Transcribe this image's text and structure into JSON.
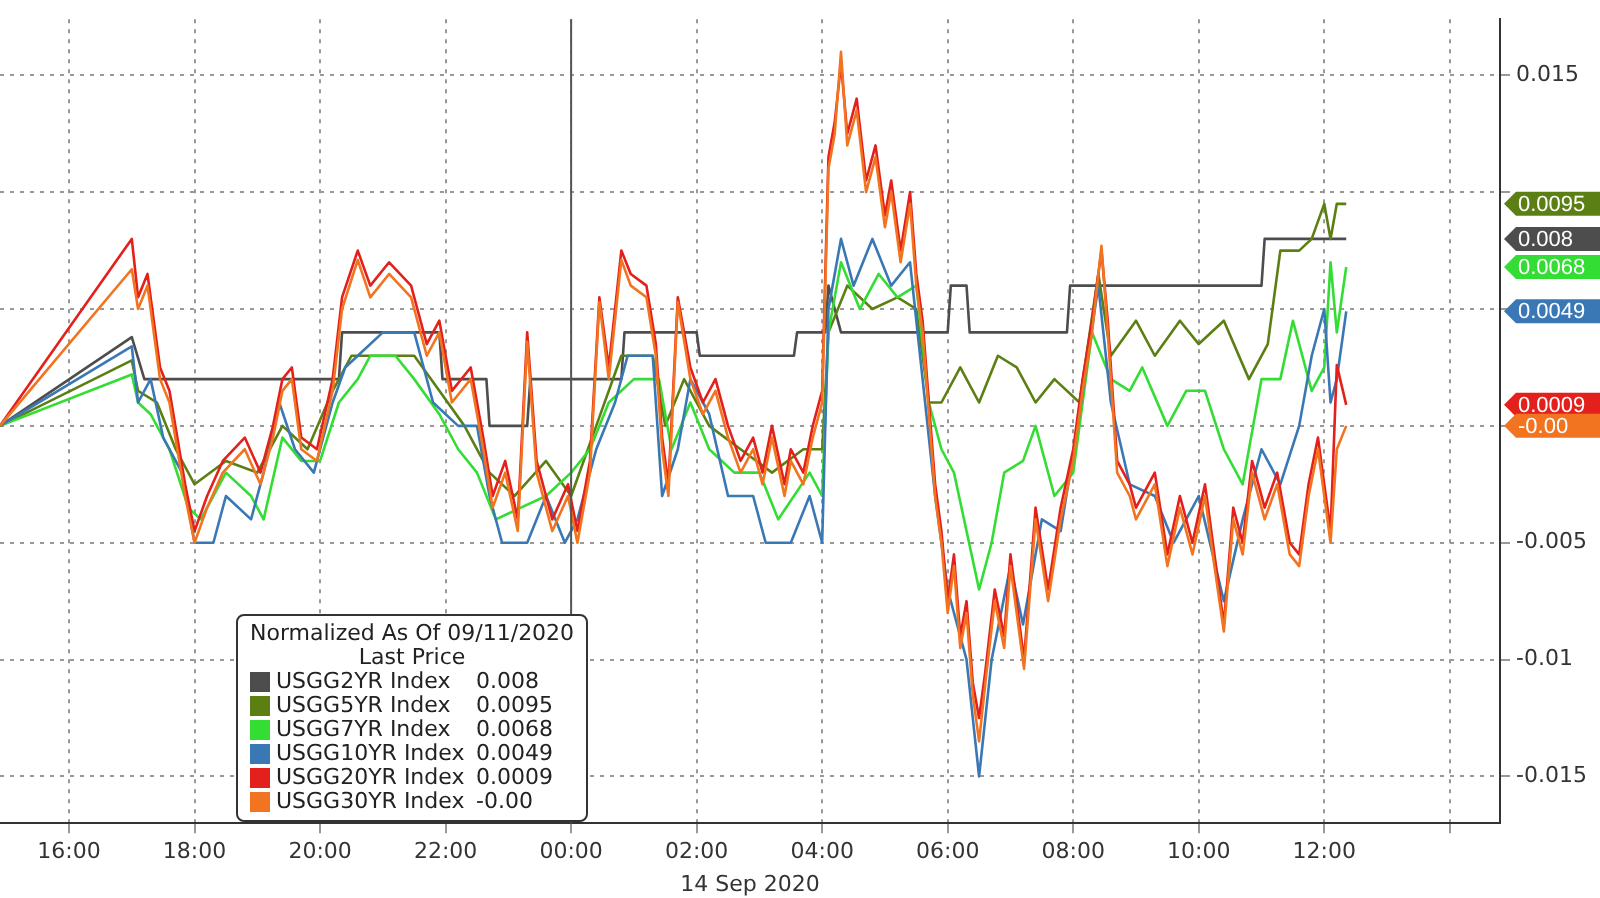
{
  "chart_data": {
    "type": "line",
    "xlabel": "14 Sep 2020",
    "legend_title": "Normalized As Of 09/11/2020",
    "legend": "bottom left",
    "grid": true,
    "marker": "none",
    "line_style": "solid",
    "xlim": [
      "2020-09-13T14:54",
      "2020-09-14T14:48"
    ],
    "xticks": [
      {
        "value": "2020-09-13T16:00",
        "label": "16:00"
      },
      {
        "value": "2020-09-13T18:00",
        "label": "18:00"
      },
      {
        "value": "2020-09-13T20:00",
        "label": "20:00"
      },
      {
        "value": "2020-09-13T22:00",
        "label": "22:00"
      },
      {
        "value": "2020-09-14T00:00",
        "label": "00:00"
      },
      {
        "value": "2020-09-14T02:00",
        "label": "02:00"
      },
      {
        "value": "2020-09-14T04:00",
        "label": "04:00"
      },
      {
        "value": "2020-09-14T06:00",
        "label": "06:00"
      },
      {
        "value": "2020-09-14T08:00",
        "label": "08:00"
      },
      {
        "value": "2020-09-14T10:00",
        "label": "10:00"
      },
      {
        "value": "2020-09-14T12:00",
        "label": "12:00"
      },
      {
        "value": "2020-09-14T14:00",
        "label": null
      }
    ],
    "ylim": [
      -0.017,
      0.0174
    ],
    "yticks": [
      0.015,
      {
        "value": 0.01,
        "label": null
      },
      {
        "value": 0.005,
        "label": null
      },
      {
        "value": 0,
        "label": null
      },
      -0.005,
      -0.01,
      -0.015
    ],
    "ref_lines": [
      {
        "axis": "x",
        "value": "2020-09-14T00:00",
        "color": "#555555"
      }
    ],
    "x": [
      "2020-09-13T14:54",
      "2020-09-13T17:00",
      "2020-09-13T17:06",
      "2020-09-13T17:15",
      "2020-09-13T17:27",
      "2020-09-13T17:36",
      "2020-09-13T17:51",
      "2020-09-13T18:00",
      "2020-09-13T18:12",
      "2020-09-13T18:27",
      "2020-09-13T18:48",
      "2020-09-13T19:03",
      "2020-09-13T19:15",
      "2020-09-13T19:24",
      "2020-09-13T19:33",
      "2020-09-13T19:42",
      "2020-09-13T19:57",
      "2020-09-13T20:12",
      "2020-09-13T20:21",
      "2020-09-13T20:36",
      "2020-09-13T20:48",
      "2020-09-13T21:06",
      "2020-09-13T21:27",
      "2020-09-13T21:42",
      "2020-09-13T21:54",
      "2020-09-13T22:06",
      "2020-09-13T22:24",
      "2020-09-13T22:36",
      "2020-09-13T22:45",
      "2020-09-13T22:57",
      "2020-09-13T23:09",
      "2020-09-13T23:18",
      "2020-09-13T23:27",
      "2020-09-13T23:42",
      "2020-09-13T23:57",
      "2020-09-14T00:06",
      "2020-09-14T00:18",
      "2020-09-14T00:27",
      "2020-09-14T00:36",
      "2020-09-14T00:48",
      "2020-09-14T00:57",
      "2020-09-14T01:12",
      "2020-09-14T01:21",
      "2020-09-14T01:27",
      "2020-09-14T01:33",
      "2020-09-14T01:42",
      "2020-09-14T01:54",
      "2020-09-14T02:06",
      "2020-09-14T02:18",
      "2020-09-14T02:30",
      "2020-09-14T02:42",
      "2020-09-14T02:54",
      "2020-09-14T03:03",
      "2020-09-14T03:12",
      "2020-09-14T03:24",
      "2020-09-14T03:30",
      "2020-09-14T03:42",
      "2020-09-14T03:51",
      "2020-09-14T04:00",
      "2020-09-14T04:06",
      "2020-09-14T04:12",
      "2020-09-14T04:18",
      "2020-09-14T04:24",
      "2020-09-14T04:33",
      "2020-09-14T04:42",
      "2020-09-14T04:51",
      "2020-09-14T05:00",
      "2020-09-14T05:06",
      "2020-09-14T05:15",
      "2020-09-14T05:24",
      "2020-09-14T05:30",
      "2020-09-14T05:36",
      "2020-09-14T05:42",
      "2020-09-14T05:48",
      "2020-09-14T05:54",
      "2020-09-14T06:00",
      "2020-09-14T06:06",
      "2020-09-14T06:12",
      "2020-09-14T06:18",
      "2020-09-14T06:24",
      "2020-09-14T06:30",
      "2020-09-14T06:36",
      "2020-09-14T06:45",
      "2020-09-14T06:54",
      "2020-09-14T07:00",
      "2020-09-14T07:13",
      "2020-09-14T07:24",
      "2020-09-14T07:36",
      "2020-09-14T07:48",
      "2020-09-14T08:00",
      "2020-09-14T08:09",
      "2020-09-14T08:18",
      "2020-09-14T08:27",
      "2020-09-14T08:33",
      "2020-09-14T08:42",
      "2020-09-14T08:54",
      "2020-09-14T09:00",
      "2020-09-14T09:18",
      "2020-09-14T09:30",
      "2020-09-14T09:42",
      "2020-09-14T09:54",
      "2020-09-14T10:06",
      "2020-09-14T10:15",
      "2020-09-14T10:24",
      "2020-09-14T10:33",
      "2020-09-14T10:42",
      "2020-09-14T10:51",
      "2020-09-14T11:03",
      "2020-09-14T11:15",
      "2020-09-14T11:27",
      "2020-09-14T11:36",
      "2020-09-14T11:45",
      "2020-09-14T11:54",
      "2020-09-14T12:00",
      "2020-09-14T12:06",
      "2020-09-14T12:12",
      "2020-09-14T12:21"
    ],
    "series": [
      {
        "name": "USGG2YR Index",
        "color": "#4d4d4d",
        "x": [
          "2020-09-13T14:54",
          "2020-09-13T17:00",
          "2020-09-13T17:12",
          "2020-09-13T20:18",
          "2020-09-13T20:21",
          "2020-09-13T21:54",
          "2020-09-13T21:57",
          "2020-09-13T22:39",
          "2020-09-13T22:42",
          "2020-09-13T23:18",
          "2020-09-13T23:21",
          "2020-09-14T00:48",
          "2020-09-14T00:51",
          "2020-09-14T02:00",
          "2020-09-14T02:03",
          "2020-09-14T03:33",
          "2020-09-14T03:36",
          "2020-09-14T04:03",
          "2020-09-14T04:06",
          "2020-09-14T04:18",
          "2020-09-14T06:00",
          "2020-09-14T06:03",
          "2020-09-14T06:18",
          "2020-09-14T06:21",
          "2020-09-14T07:54",
          "2020-09-14T07:57",
          "2020-09-14T11:00",
          "2020-09-14T11:03",
          "2020-09-14T12:21"
        ],
        "values": [
          0,
          0.0038,
          0.002,
          0.002,
          0.004,
          0.004,
          0.002,
          0.002,
          0,
          0,
          0.002,
          0.002,
          0.004,
          0.004,
          0.003,
          0.003,
          0.004,
          0.004,
          0.006,
          0.004,
          0.004,
          0.006,
          0.006,
          0.004,
          0.004,
          0.006,
          0.006,
          0.008,
          0.008
        ]
      },
      {
        "name": "USGG5YR Index",
        "color": "#5b7f12",
        "x": [
          "2020-09-13T14:54",
          "2020-09-13T17:00",
          "2020-09-13T17:06",
          "2020-09-13T17:24",
          "2020-09-13T17:42",
          "2020-09-13T18:00",
          "2020-09-13T18:30",
          "2020-09-13T19:00",
          "2020-09-13T19:24",
          "2020-09-13T19:48",
          "2020-09-13T20:12",
          "2020-09-13T20:30",
          "2020-09-13T21:00",
          "2020-09-13T21:30",
          "2020-09-13T21:54",
          "2020-09-13T22:18",
          "2020-09-13T22:42",
          "2020-09-13T23:06",
          "2020-09-13T23:36",
          "2020-09-14T00:00",
          "2020-09-14T00:24",
          "2020-09-14T00:48",
          "2020-09-14T01:18",
          "2020-09-14T01:30",
          "2020-09-14T01:48",
          "2020-09-14T02:12",
          "2020-09-14T02:42",
          "2020-09-14T03:12",
          "2020-09-14T03:42",
          "2020-09-14T04:00",
          "2020-09-14T04:06",
          "2020-09-14T04:24",
          "2020-09-14T04:48",
          "2020-09-14T05:12",
          "2020-09-14T05:30",
          "2020-09-14T05:42",
          "2020-09-14T05:54",
          "2020-09-14T06:12",
          "2020-09-14T06:30",
          "2020-09-14T06:48",
          "2020-09-14T07:06",
          "2020-09-14T07:24",
          "2020-09-14T07:42",
          "2020-09-14T08:06",
          "2020-09-14T08:24",
          "2020-09-14T08:36",
          "2020-09-14T09:00",
          "2020-09-14T09:18",
          "2020-09-14T09:42",
          "2020-09-14T10:00",
          "2020-09-14T10:24",
          "2020-09-14T10:48",
          "2020-09-14T11:06",
          "2020-09-14T11:18",
          "2020-09-14T11:36",
          "2020-09-14T11:48",
          "2020-09-14T12:00",
          "2020-09-14T12:06",
          "2020-09-14T12:12",
          "2020-09-14T12:21"
        ],
        "values": [
          0,
          0.0028,
          0.0015,
          0.001,
          -0.001,
          -0.0025,
          -0.0015,
          -0.002,
          0,
          -0.001,
          0.0015,
          0.003,
          0.003,
          0.003,
          0.0015,
          0,
          -0.002,
          -0.003,
          -0.0015,
          -0.003,
          0,
          0.003,
          0.003,
          0,
          0.002,
          0,
          -0.001,
          -0.002,
          -0.001,
          -0.001,
          0.004,
          0.006,
          0.005,
          0.0055,
          0.005,
          0.001,
          0.001,
          0.0025,
          0.001,
          0.003,
          0.0025,
          0.001,
          0.002,
          0.001,
          0.0065,
          0.003,
          0.0045,
          0.003,
          0.0045,
          0.0035,
          0.0045,
          0.002,
          0.0035,
          0.0075,
          0.0075,
          0.008,
          0.0095,
          0.008,
          0.0095,
          0.0095
        ]
      },
      {
        "name": "USGG7YR Index",
        "color": "#33dd33",
        "x": [
          "2020-09-13T14:54",
          "2020-09-13T17:00",
          "2020-09-13T17:06",
          "2020-09-13T17:18",
          "2020-09-13T17:36",
          "2020-09-13T17:54",
          "2020-09-13T18:06",
          "2020-09-13T18:30",
          "2020-09-13T18:54",
          "2020-09-13T19:06",
          "2020-09-13T19:24",
          "2020-09-13T19:42",
          "2020-09-13T20:00",
          "2020-09-13T20:18",
          "2020-09-13T20:36",
          "2020-09-13T20:48",
          "2020-09-13T21:12",
          "2020-09-13T21:30",
          "2020-09-13T21:54",
          "2020-09-13T22:12",
          "2020-09-13T22:30",
          "2020-09-13T22:48",
          "2020-09-13T23:12",
          "2020-09-13T23:36",
          "2020-09-14T00:00",
          "2020-09-14T00:18",
          "2020-09-14T00:36",
          "2020-09-14T01:00",
          "2020-09-14T01:24",
          "2020-09-14T01:36",
          "2020-09-14T01:54",
          "2020-09-14T02:12",
          "2020-09-14T02:36",
          "2020-09-14T03:00",
          "2020-09-14T03:18",
          "2020-09-14T03:48",
          "2020-09-14T04:00",
          "2020-09-14T04:06",
          "2020-09-14T04:18",
          "2020-09-14T04:36",
          "2020-09-14T04:54",
          "2020-09-14T05:12",
          "2020-09-14T05:30",
          "2020-09-14T05:42",
          "2020-09-14T05:54",
          "2020-09-14T06:06",
          "2020-09-14T06:18",
          "2020-09-14T06:30",
          "2020-09-14T06:42",
          "2020-09-14T06:54",
          "2020-09-14T07:12",
          "2020-09-14T07:24",
          "2020-09-14T07:42",
          "2020-09-14T08:00",
          "2020-09-14T08:18",
          "2020-09-14T08:36",
          "2020-09-14T08:54",
          "2020-09-14T09:06",
          "2020-09-14T09:30",
          "2020-09-14T09:48",
          "2020-09-14T10:06",
          "2020-09-14T10:24",
          "2020-09-14T10:42",
          "2020-09-14T11:00",
          "2020-09-14T11:18",
          "2020-09-14T11:30",
          "2020-09-14T11:48",
          "2020-09-14T12:00",
          "2020-09-14T12:06",
          "2020-09-14T12:12",
          "2020-09-14T12:21"
        ],
        "values": [
          0,
          0.0022,
          0.001,
          0.0005,
          -0.001,
          -0.0035,
          -0.004,
          -0.002,
          -0.003,
          -0.004,
          -0.0005,
          -0.0015,
          -0.0015,
          0.001,
          0.002,
          0.003,
          0.003,
          0.002,
          0.0005,
          -0.001,
          -0.002,
          -0.004,
          -0.0035,
          -0.003,
          -0.002,
          -0.001,
          0.001,
          0.002,
          0.002,
          -0.001,
          0.001,
          -0.001,
          -0.002,
          -0.002,
          -0.004,
          -0.002,
          -0.003,
          0.004,
          0.007,
          0.005,
          0.0065,
          0.0055,
          0.006,
          0.001,
          -0.001,
          -0.002,
          -0.0045,
          -0.007,
          -0.005,
          -0.002,
          -0.0015,
          0,
          -0.003,
          -0.002,
          0.004,
          0.002,
          0.0015,
          0.0025,
          0,
          0.0015,
          0.0015,
          -0.001,
          -0.0025,
          0.002,
          0.002,
          0.0045,
          0.0015,
          0.0025,
          0.007,
          0.004,
          0.0068
        ]
      },
      {
        "name": "USGG10YR Index",
        "color": "#3a78b5",
        "x": [
          "2020-09-13T14:54",
          "2020-09-13T17:00",
          "2020-09-13T17:06",
          "2020-09-13T17:18",
          "2020-09-13T17:30",
          "2020-09-13T17:48",
          "2020-09-13T18:00",
          "2020-09-13T18:18",
          "2020-09-13T18:30",
          "2020-09-13T18:54",
          "2020-09-13T19:06",
          "2020-09-13T19:21",
          "2020-09-13T19:36",
          "2020-09-13T19:54",
          "2020-09-13T20:12",
          "2020-09-13T20:24",
          "2020-09-13T20:36",
          "2020-09-13T21:00",
          "2020-09-13T21:30",
          "2020-09-13T21:48",
          "2020-09-13T22:12",
          "2020-09-13T22:30",
          "2020-09-13T22:42",
          "2020-09-13T22:54",
          "2020-09-13T23:18",
          "2020-09-13T23:36",
          "2020-09-13T23:54",
          "2020-09-14T00:06",
          "2020-09-14T00:24",
          "2020-09-14T00:42",
          "2020-09-14T00:54",
          "2020-09-14T01:18",
          "2020-09-14T01:27",
          "2020-09-14T01:42",
          "2020-09-14T01:54",
          "2020-09-14T02:12",
          "2020-09-14T02:30",
          "2020-09-14T02:54",
          "2020-09-14T03:06",
          "2020-09-14T03:30",
          "2020-09-14T03:48",
          "2020-09-14T04:00",
          "2020-09-14T04:06",
          "2020-09-14T04:18",
          "2020-09-14T04:30",
          "2020-09-14T04:48",
          "2020-09-14T05:06",
          "2020-09-14T05:24",
          "2020-09-14T05:36",
          "2020-09-14T05:48",
          "2020-09-14T06:00",
          "2020-09-14T06:18",
          "2020-09-14T06:30",
          "2020-09-14T06:42",
          "2020-09-14T07:00",
          "2020-09-14T07:12",
          "2020-09-14T07:30",
          "2020-09-14T07:48",
          "2020-09-14T08:06",
          "2020-09-14T08:24",
          "2020-09-14T08:36",
          "2020-09-14T08:54",
          "2020-09-14T09:18",
          "2020-09-14T09:36",
          "2020-09-14T10:00",
          "2020-09-14T10:24",
          "2020-09-14T10:42",
          "2020-09-14T11:00",
          "2020-09-14T11:18",
          "2020-09-14T11:36",
          "2020-09-14T11:48",
          "2020-09-14T12:00",
          "2020-09-14T12:06",
          "2020-09-14T12:12",
          "2020-09-14T12:21"
        ],
        "values": [
          0,
          0.0034,
          0.001,
          0.002,
          -0.0005,
          -0.002,
          -0.005,
          -0.005,
          -0.003,
          -0.004,
          -0.002,
          0.001,
          -0.001,
          -0.002,
          0.001,
          0.0025,
          0.003,
          0.004,
          0.004,
          0.001,
          0,
          0,
          -0.003,
          -0.005,
          -0.005,
          -0.003,
          -0.005,
          -0.004,
          -0.001,
          0.001,
          0.003,
          0.003,
          -0.003,
          -0.001,
          0.002,
          0.0005,
          -0.003,
          -0.003,
          -0.005,
          -0.005,
          -0.003,
          -0.005,
          0.005,
          0.008,
          0.006,
          0.008,
          0.006,
          0.007,
          0.002,
          -0.003,
          -0.007,
          -0.01,
          -0.015,
          -0.01,
          -0.006,
          -0.0085,
          -0.004,
          -0.0045,
          0.0005,
          0.006,
          0.001,
          -0.0025,
          -0.003,
          -0.005,
          -0.003,
          -0.0075,
          -0.004,
          -0.001,
          -0.0025,
          0,
          0.003,
          0.005,
          0.001,
          0.002,
          0.0049
        ]
      },
      {
        "name": "USGG20YR Index",
        "color": "#e3201b",
        "values": [
          0,
          0.008,
          0.0055,
          0.0065,
          0.0025,
          0.0015,
          -0.0025,
          -0.0045,
          -0.003,
          -0.0015,
          -0.0005,
          -0.002,
          0,
          0.002,
          0.0025,
          -0.0005,
          -0.001,
          0.002,
          0.0055,
          0.0075,
          0.006,
          0.007,
          0.006,
          0.0035,
          0.0045,
          0.0015,
          0.0025,
          -0.0005,
          -0.003,
          -0.0015,
          -0.004,
          0.004,
          -0.0015,
          -0.004,
          -0.0025,
          -0.0045,
          -0.0015,
          0.0055,
          0.0025,
          0.0075,
          0.0065,
          0.006,
          0.0035,
          -0.0005,
          -0.0025,
          0.0055,
          0.0025,
          0.001,
          0.002,
          0,
          -0.0015,
          -0.0005,
          -0.002,
          0,
          -0.0025,
          -0.001,
          -0.002,
          0,
          0.0015,
          0.0115,
          0.013,
          0.0155,
          0.0125,
          0.014,
          0.0105,
          0.012,
          0.009,
          0.0105,
          0.0075,
          0.01,
          0.0065,
          0.0045,
          0.001,
          -0.0025,
          -0.0045,
          -0.0075,
          -0.0055,
          -0.009,
          -0.0075,
          -0.011,
          -0.0125,
          -0.0105,
          -0.007,
          -0.009,
          -0.0055,
          -0.01,
          -0.0035,
          -0.007,
          -0.0035,
          -0.001,
          0.002,
          0.0045,
          0.0075,
          0.0045,
          -0.0015,
          -0.0025,
          -0.0035,
          -0.002,
          -0.0055,
          -0.003,
          -0.005,
          -0.0025,
          -0.0055,
          -0.0085,
          -0.0035,
          -0.005,
          -0.0015,
          -0.0035,
          -0.002,
          -0.005,
          -0.0055,
          -0.0025,
          -0.0005,
          -0.0025,
          -0.0045,
          0.0026,
          0.0009
        ]
      },
      {
        "name": "USGG30YR Index",
        "color": "#f27420",
        "values": [
          0,
          0.0067,
          0.005,
          0.006,
          0.002,
          0.001,
          -0.003,
          -0.005,
          -0.0035,
          -0.002,
          -0.001,
          -0.0025,
          -0.0005,
          0.0015,
          0.002,
          -0.001,
          -0.0015,
          0.0015,
          0.005,
          0.0071,
          0.0055,
          0.0065,
          0.0055,
          0.003,
          0.004,
          0.001,
          0.002,
          -0.001,
          -0.0035,
          -0.002,
          -0.0045,
          0.0036,
          -0.002,
          -0.0045,
          -0.003,
          -0.005,
          -0.002,
          0.0053,
          0.002,
          0.0071,
          0.006,
          0.0055,
          0.003,
          -0.001,
          -0.003,
          0.0053,
          0.002,
          0.0005,
          0.0015,
          -0.0005,
          -0.002,
          -0.001,
          -0.0025,
          -0.0005,
          -0.003,
          -0.0015,
          -0.0025,
          -0.0005,
          0.001,
          0.011,
          0.0125,
          0.016,
          0.012,
          0.0135,
          0.01,
          0.0115,
          0.0085,
          0.01,
          0.007,
          0.0095,
          0.006,
          0.004,
          0.0005,
          -0.003,
          -0.005,
          -0.008,
          -0.006,
          -0.0095,
          -0.008,
          -0.0115,
          -0.0135,
          -0.011,
          -0.0075,
          -0.0095,
          -0.006,
          -0.0104,
          -0.004,
          -0.0075,
          -0.004,
          -0.0015,
          0.0015,
          0.004,
          0.0077,
          0.004,
          -0.002,
          -0.003,
          -0.004,
          -0.0025,
          -0.006,
          -0.0035,
          -0.0055,
          -0.003,
          -0.006,
          -0.0088,
          -0.004,
          -0.0055,
          -0.002,
          -0.004,
          -0.0025,
          -0.0055,
          -0.006,
          -0.003,
          -0.001,
          -0.003,
          -0.005,
          -0.001,
          0
        ]
      }
    ],
    "annotations": [
      "0.008",
      "0.0095",
      "0.0068",
      "0.0049",
      "0.0009",
      "-0.00",
      "Last Price"
    ]
  }
}
